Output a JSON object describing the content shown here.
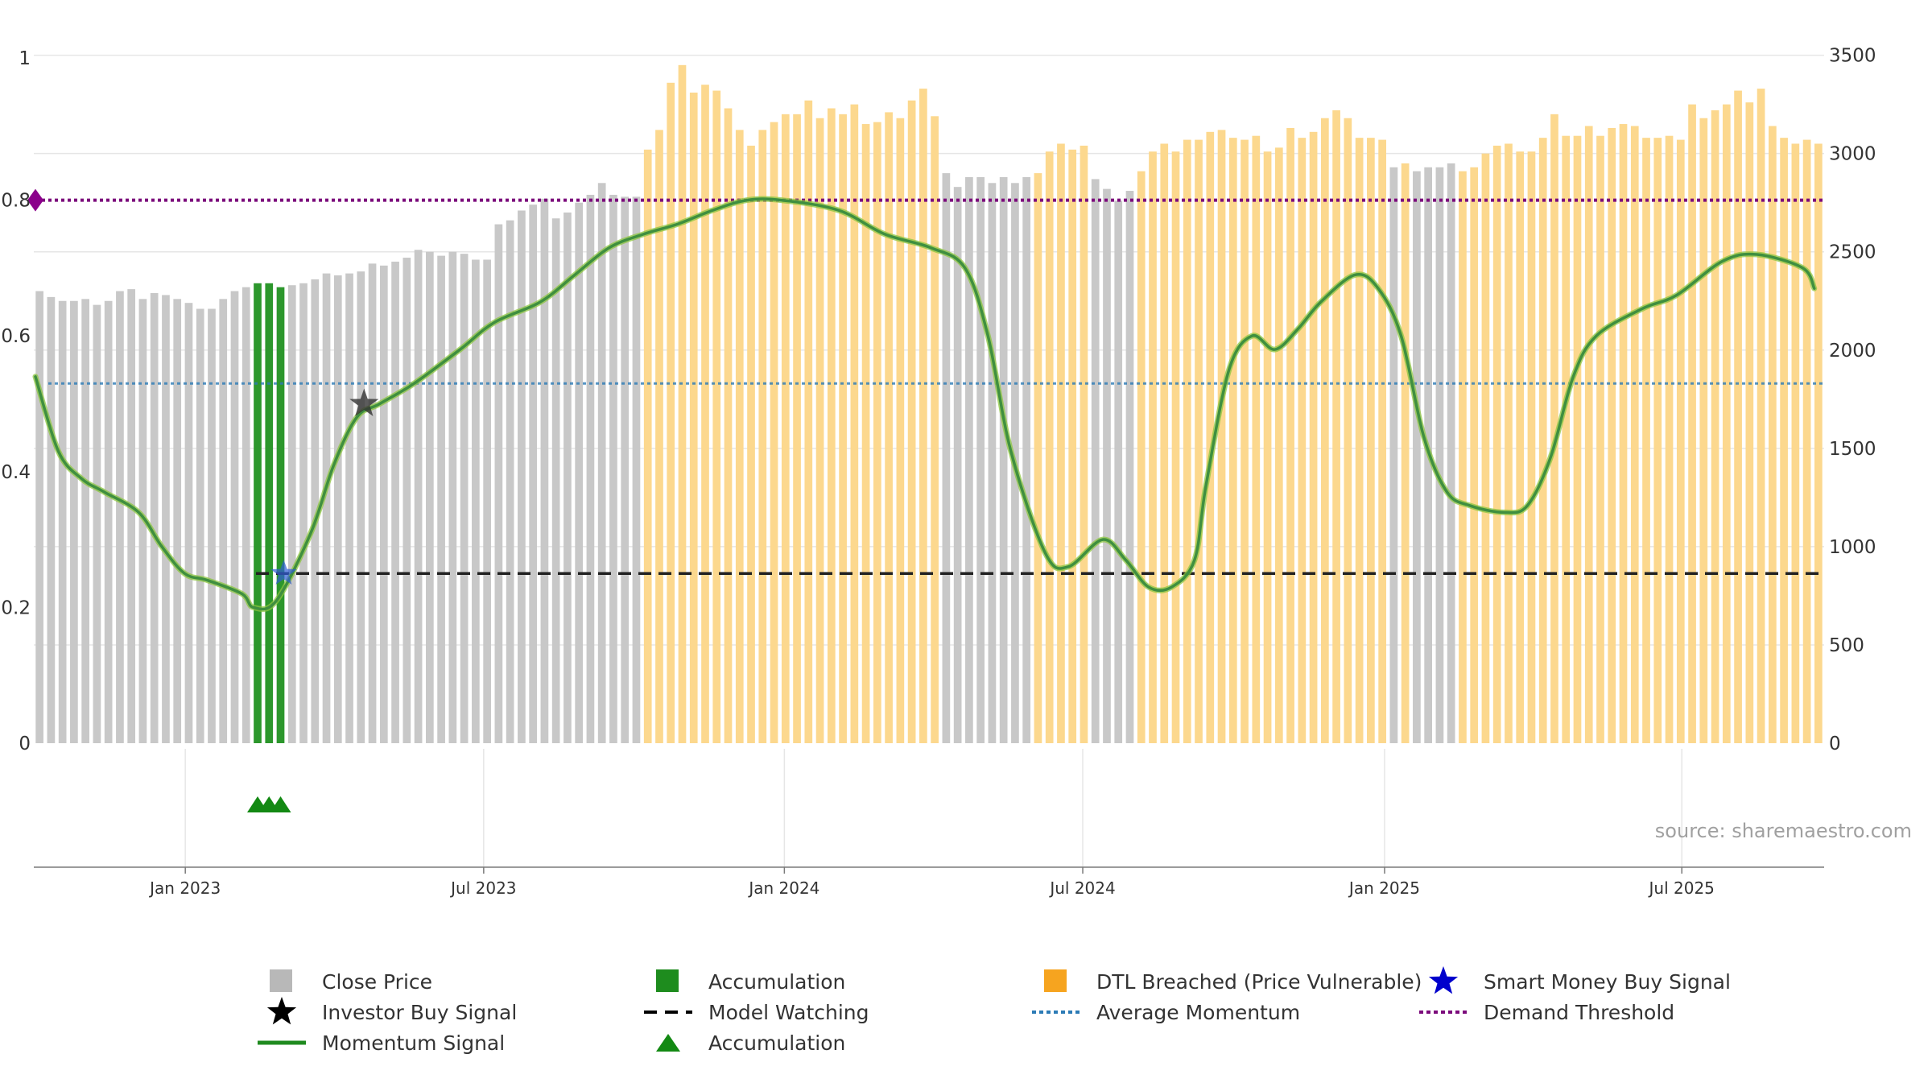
{
  "chart_data": {
    "type": "bar",
    "source": "source: sharemaestro.com",
    "left_axis": {
      "ticks": [
        "0",
        "0.2",
        "0.4",
        "0.6",
        "0.8",
        "1"
      ],
      "ylim": [
        0,
        1
      ]
    },
    "right_axis": {
      "ticks": [
        "0",
        "500",
        "1000",
        "1500",
        "2000",
        "2500",
        "3000",
        "3500"
      ],
      "ylim": [
        0,
        3650
      ]
    },
    "x_ticks": [
      "Jan 2023",
      "Jul 2023",
      "Jan 2024",
      "Jul 2024",
      "Jan 2025",
      "Jul 2025"
    ],
    "weeks_from": "Oct 2022",
    "close_prices": [
      2300,
      2270,
      2250,
      2250,
      2260,
      2230,
      2250,
      2300,
      2310,
      2260,
      2290,
      2280,
      2260,
      2240,
      2210,
      2210,
      2260,
      2300,
      2320,
      2340,
      2340,
      2320,
      2330,
      2340,
      2360,
      2390,
      2380,
      2390,
      2400,
      2440,
      2430,
      2450,
      2470,
      2510,
      2500,
      2480,
      2500,
      2490,
      2460,
      2460,
      2640,
      2660,
      2710,
      2740,
      2770,
      2670,
      2700,
      2750,
      2790,
      2850,
      2790,
      2780,
      2780,
      3020,
      3120,
      3360,
      3450,
      3310,
      3350,
      3320,
      3230,
      3120,
      3040,
      3120,
      3160,
      3200,
      3200,
      3270,
      3180,
      3230,
      3200,
      3250,
      3150,
      3160,
      3210,
      3180,
      3270,
      3330,
      3190,
      2900,
      2830,
      2880,
      2880,
      2850,
      2880,
      2850,
      2880,
      2900,
      3010,
      3050,
      3020,
      3040,
      2870,
      2820,
      2760,
      2810,
      2910,
      3010,
      3050,
      3010,
      3070,
      3070,
      3110,
      3120,
      3080,
      3070,
      3090,
      3010,
      3030,
      3130,
      3080,
      3110,
      3180,
      3220,
      3180,
      3080,
      3080,
      3070,
      2930,
      2950,
      2910,
      2930,
      2930,
      2950,
      2910,
      2930,
      3000,
      3040,
      3050,
      3010,
      3010,
      3080,
      3200,
      3090,
      3090,
      3140,
      3090,
      3130,
      3150,
      3140,
      3080,
      3080,
      3090,
      3070,
      3250,
      3180,
      3220,
      3250,
      3320,
      3260,
      3330,
      3140,
      3080,
      3050,
      3070,
      3050
    ],
    "bar_types": [
      "close_price",
      "close_price",
      "close_price",
      "close_price",
      "close_price",
      "close_price",
      "close_price",
      "close_price",
      "close_price",
      "close_price",
      "close_price",
      "close_price",
      "close_price",
      "close_price",
      "close_price",
      "close_price",
      "close_price",
      "close_price",
      "close_price",
      "accumulation",
      "accumulation",
      "accumulation",
      "close_price",
      "close_price",
      "close_price",
      "close_price",
      "close_price",
      "close_price",
      "close_price",
      "close_price",
      "close_price",
      "close_price",
      "close_price",
      "close_price",
      "close_price",
      "close_price",
      "close_price",
      "close_price",
      "close_price",
      "close_price",
      "close_price",
      "close_price",
      "close_price",
      "close_price",
      "close_price",
      "close_price",
      "close_price",
      "close_price",
      "close_price",
      "close_price",
      "close_price",
      "close_price",
      "close_price",
      "dtl",
      "dtl",
      "dtl",
      "dtl",
      "dtl",
      "dtl",
      "dtl",
      "dtl",
      "dtl",
      "dtl",
      "dtl",
      "dtl",
      "dtl",
      "dtl",
      "dtl",
      "dtl",
      "dtl",
      "dtl",
      "dtl",
      "dtl",
      "dtl",
      "dtl",
      "dtl",
      "dtl",
      "dtl",
      "dtl",
      "close_price",
      "close_price",
      "close_price",
      "close_price",
      "close_price",
      "close_price",
      "close_price",
      "close_price",
      "dtl",
      "dtl",
      "dtl",
      "dtl",
      "dtl",
      "close_price",
      "close_price",
      "close_price",
      "close_price",
      "dtl",
      "dtl",
      "dtl",
      "dtl",
      "dtl",
      "dtl",
      "dtl",
      "dtl",
      "dtl",
      "dtl",
      "dtl",
      "dtl",
      "dtl",
      "dtl",
      "dtl",
      "dtl",
      "dtl",
      "dtl",
      "dtl",
      "dtl",
      "dtl",
      "dtl",
      "close_price",
      "dtl",
      "close_price",
      "close_price",
      "close_price",
      "close_price",
      "dtl",
      "dtl",
      "dtl",
      "dtl",
      "dtl",
      "dtl",
      "dtl",
      "dtl",
      "dtl",
      "dtl",
      "dtl",
      "dtl",
      "dtl",
      "dtl",
      "dtl",
      "dtl",
      "dtl",
      "dtl",
      "dtl",
      "dtl",
      "dtl",
      "dtl",
      "dtl",
      "dtl",
      "dtl",
      "dtl",
      "dtl",
      "dtl",
      "dtl",
      "dtl",
      "dtl",
      "dtl"
    ],
    "momentum_points": [
      [
        0,
        0.54
      ],
      [
        2,
        0.43
      ],
      [
        4,
        0.39
      ],
      [
        6,
        0.37
      ],
      [
        9,
        0.34
      ],
      [
        11,
        0.29
      ],
      [
        13,
        0.25
      ],
      [
        15,
        0.24
      ],
      [
        18,
        0.22
      ],
      [
        19,
        0.2
      ],
      [
        21,
        0.21
      ],
      [
        24,
        0.31
      ],
      [
        26,
        0.41
      ],
      [
        28,
        0.48
      ],
      [
        30,
        0.5
      ],
      [
        33,
        0.53
      ],
      [
        37,
        0.58
      ],
      [
        40,
        0.62
      ],
      [
        44,
        0.65
      ],
      [
        47,
        0.69
      ],
      [
        50,
        0.73
      ],
      [
        53,
        0.75
      ],
      [
        56,
        0.765
      ],
      [
        59,
        0.785
      ],
      [
        62,
        0.8
      ],
      [
        65,
        0.8
      ],
      [
        70,
        0.785
      ],
      [
        74,
        0.75
      ],
      [
        78,
        0.73
      ],
      [
        81,
        0.7
      ],
      [
        83,
        0.6
      ],
      [
        85,
        0.43
      ],
      [
        88,
        0.28
      ],
      [
        90,
        0.26
      ],
      [
        93,
        0.3
      ],
      [
        95,
        0.27
      ],
      [
        97,
        0.23
      ],
      [
        99,
        0.23
      ],
      [
        101,
        0.27
      ],
      [
        102,
        0.38
      ],
      [
        104,
        0.55
      ],
      [
        106,
        0.6
      ],
      [
        108,
        0.58
      ],
      [
        110,
        0.61
      ],
      [
        112,
        0.65
      ],
      [
        115,
        0.69
      ],
      [
        117,
        0.67
      ],
      [
        119,
        0.6
      ],
      [
        121,
        0.45
      ],
      [
        123,
        0.37
      ],
      [
        125,
        0.35
      ],
      [
        128,
        0.34
      ],
      [
        130,
        0.35
      ],
      [
        132,
        0.42
      ],
      [
        134,
        0.54
      ],
      [
        136,
        0.6
      ],
      [
        140,
        0.64
      ],
      [
        143,
        0.66
      ],
      [
        147,
        0.71
      ],
      [
        150,
        0.72
      ],
      [
        154,
        0.7
      ],
      [
        155,
        0.67
      ]
    ],
    "reference_lines": {
      "demand_threshold": 0.8,
      "average_momentum": 0.53,
      "model_watching": 0.25
    },
    "smart_money_buy_signals": [
      [
        21,
        0.25
      ]
    ],
    "investor_buy_signals": [
      [
        28,
        0.5
      ]
    ],
    "accumulation_markers": [
      19,
      20,
      21
    ],
    "legend": [
      {
        "label": "Close Price",
        "symbol": "square",
        "color": "#b8b8b8"
      },
      {
        "label": "Accumulation",
        "symbol": "square",
        "color": "#1e8c1e"
      },
      {
        "label": "DTL Breached (Price Vulnerable)",
        "symbol": "square",
        "color": "#f6a41f"
      },
      {
        "label": "Smart Money Buy Signal",
        "symbol": "star",
        "color": "#0000cc"
      },
      {
        "label": "Investor Buy Signal",
        "symbol": "star",
        "color": "#000000"
      },
      {
        "label": "Model Watching",
        "symbol": "dash",
        "color": "#000000"
      },
      {
        "label": "Average Momentum",
        "symbol": "dot",
        "color": "#2c7bb6"
      },
      {
        "label": "Demand Threshold",
        "symbol": "dot",
        "color": "#7b0a7b"
      },
      {
        "label": "Momentum Signal",
        "symbol": "line",
        "color": "#1f8a1f"
      },
      {
        "label": "Accumulation",
        "symbol": "triangle",
        "color": "#138913"
      }
    ],
    "colors": {
      "close_price": "#c8c8c8",
      "accumulation": "#2c972c",
      "dtl": "#fcd88e",
      "momentum": "#3f8f3f",
      "momentum_glow": "#8cc63f",
      "demand_threshold": "#7b0a7b",
      "average_momentum": "#2c7bb6",
      "model_watching": "#222222",
      "grid": "#e6e6e6"
    }
  }
}
